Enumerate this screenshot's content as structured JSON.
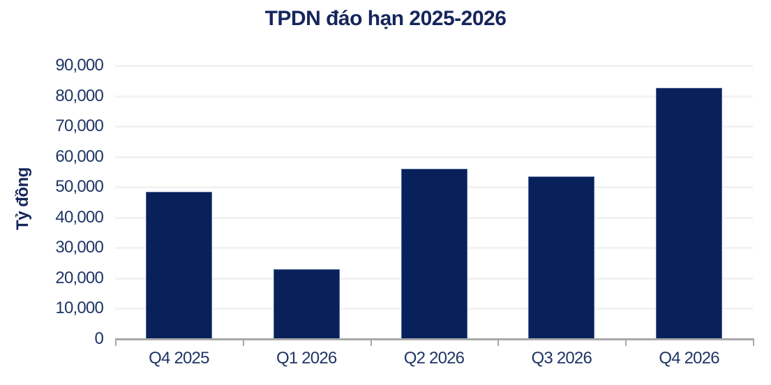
{
  "chart_data": {
    "type": "bar",
    "title": "TPDN đáo hạn 2025-2026",
    "xlabel": "",
    "ylabel": "Tỷ đồng",
    "categories": [
      "Q4 2025",
      "Q1 2026",
      "Q2 2026",
      "Q3 2026",
      "Q4 2026"
    ],
    "values": [
      48400,
      22900,
      56000,
      53400,
      82700
    ],
    "ylim": [
      0,
      90000
    ],
    "ytick_step": 10000,
    "ytick_labels": [
      "0",
      "10,000",
      "20,000",
      "30,000",
      "40,000",
      "50,000",
      "60,000",
      "70,000",
      "80,000",
      "90,000"
    ],
    "grid": true,
    "legend": false
  },
  "colors": {
    "background": "#FFFFFF",
    "bar_fill": "#08215A",
    "bar_edge": "#51689B",
    "title_text": "#16265B",
    "tick_text": "#1F3566",
    "axis_line": "#A8A8A8",
    "gridline": "#F2F2F2"
  }
}
